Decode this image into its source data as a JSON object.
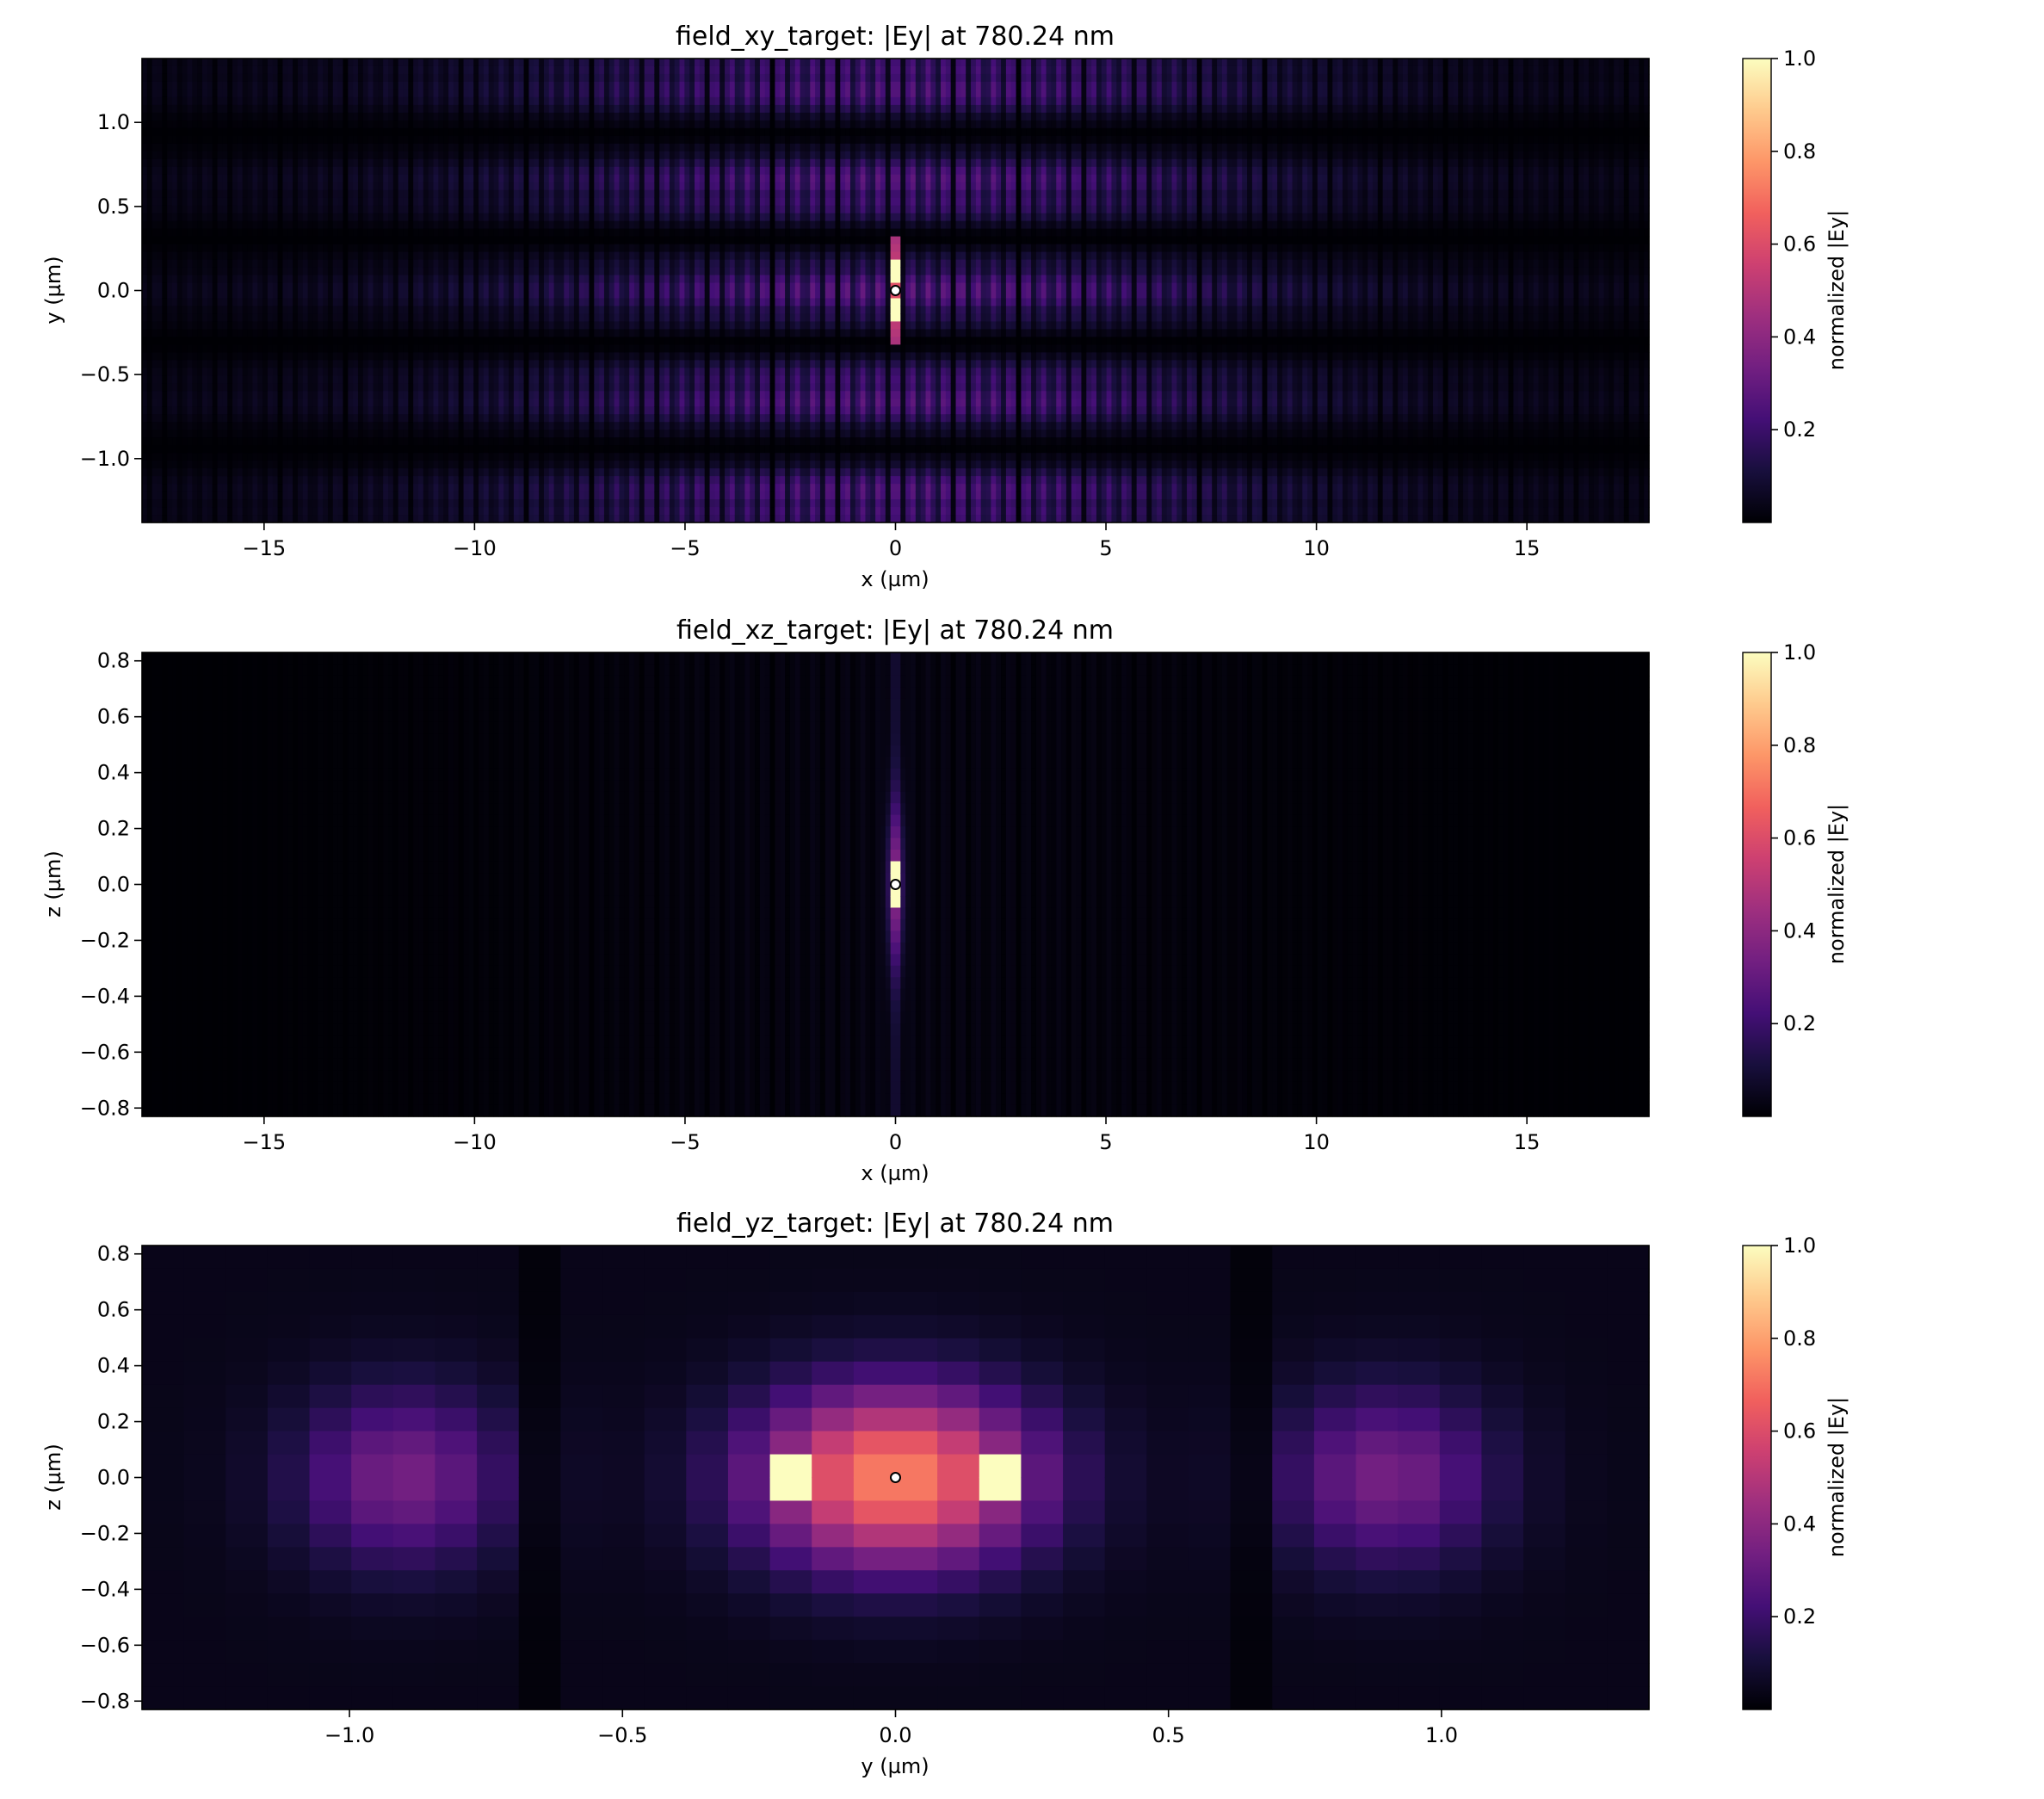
{
  "colormap": [
    "#000004",
    "#180f3d",
    "#440f76",
    "#721f81",
    "#9e2f7f",
    "#cd4071",
    "#f1605d",
    "#fd9668",
    "#feca8d",
    "#fcfdbf"
  ],
  "chart_data": [
    {
      "type": "heatmap",
      "id": "xy",
      "title": "field_xy_target: |Ey| at 780.24 nm",
      "xlabel": "x (µm)",
      "ylabel": "y (µm)",
      "xlim": [
        -17.9,
        17.9
      ],
      "ylim": [
        -1.38,
        1.38
      ],
      "xticks": [
        -15,
        -10,
        -5,
        0,
        5,
        10,
        15
      ],
      "xtick_labels": [
        "−15",
        "−10",
        "−5",
        "0",
        "5",
        "10",
        "15"
      ],
      "yticks": [
        -1.0,
        -0.5,
        0.0,
        0.5,
        1.0
      ],
      "ytick_labels": [
        "−1.0",
        "−0.5",
        "0.0",
        "0.5",
        "1.0"
      ],
      "colorbar": {
        "label": "normalized |Ey|",
        "range": [
          0,
          1
        ],
        "ticks": [
          0.2,
          0.4,
          0.6,
          0.8,
          1.0
        ],
        "tick_labels": [
          "0.2",
          "0.4",
          "0.6",
          "0.8",
          "1.0"
        ]
      },
      "marker": {
        "x": 0,
        "y": 0
      }
    },
    {
      "type": "heatmap",
      "id": "xz",
      "title": "field_xz_target: |Ey| at 780.24 nm",
      "xlabel": "x (µm)",
      "ylabel": "z (µm)",
      "xlim": [
        -17.9,
        17.9
      ],
      "ylim": [
        -0.83,
        0.83
      ],
      "xticks": [
        -15,
        -10,
        -5,
        0,
        5,
        10,
        15
      ],
      "xtick_labels": [
        "−15",
        "−10",
        "−5",
        "0",
        "5",
        "10",
        "15"
      ],
      "yticks": [
        -0.8,
        -0.6,
        -0.4,
        -0.2,
        0.0,
        0.2,
        0.4,
        0.6,
        0.8
      ],
      "ytick_labels": [
        "−0.8",
        "−0.6",
        "−0.4",
        "−0.2",
        "0.0",
        "0.2",
        "0.4",
        "0.6",
        "0.8"
      ],
      "colorbar": {
        "label": "normalized |Ey|",
        "range": [
          0,
          1
        ],
        "ticks": [
          0.2,
          0.4,
          0.6,
          0.8,
          1.0
        ],
        "tick_labels": [
          "0.2",
          "0.4",
          "0.6",
          "0.8",
          "1.0"
        ]
      },
      "marker": {
        "x": 0,
        "y": 0
      }
    },
    {
      "type": "heatmap",
      "id": "yz",
      "title": "field_yz_target: |Ey| at 780.24 nm",
      "xlabel": "y (µm)",
      "ylabel": "z (µm)",
      "xlim": [
        -1.38,
        1.38
      ],
      "ylim": [
        -0.83,
        0.83
      ],
      "xticks": [
        -1.0,
        -0.5,
        0.0,
        0.5,
        1.0
      ],
      "xtick_labels": [
        "−1.0",
        "−0.5",
        "0.0",
        "0.5",
        "1.0"
      ],
      "yticks": [
        -0.8,
        -0.6,
        -0.4,
        -0.2,
        0.0,
        0.2,
        0.4,
        0.6,
        0.8
      ],
      "ytick_labels": [
        "−0.8",
        "−0.6",
        "−0.4",
        "−0.2",
        "0.0",
        "0.2",
        "0.4",
        "0.6",
        "0.8"
      ],
      "colorbar": {
        "label": "normalized |Ey|",
        "range": [
          0,
          1
        ],
        "ticks": [
          0.2,
          0.4,
          0.6,
          0.8,
          1.0
        ],
        "tick_labels": [
          "0.2",
          "0.4",
          "0.6",
          "0.8",
          "1.0"
        ]
      },
      "marker": {
        "x": 0,
        "y": 0
      }
    }
  ]
}
